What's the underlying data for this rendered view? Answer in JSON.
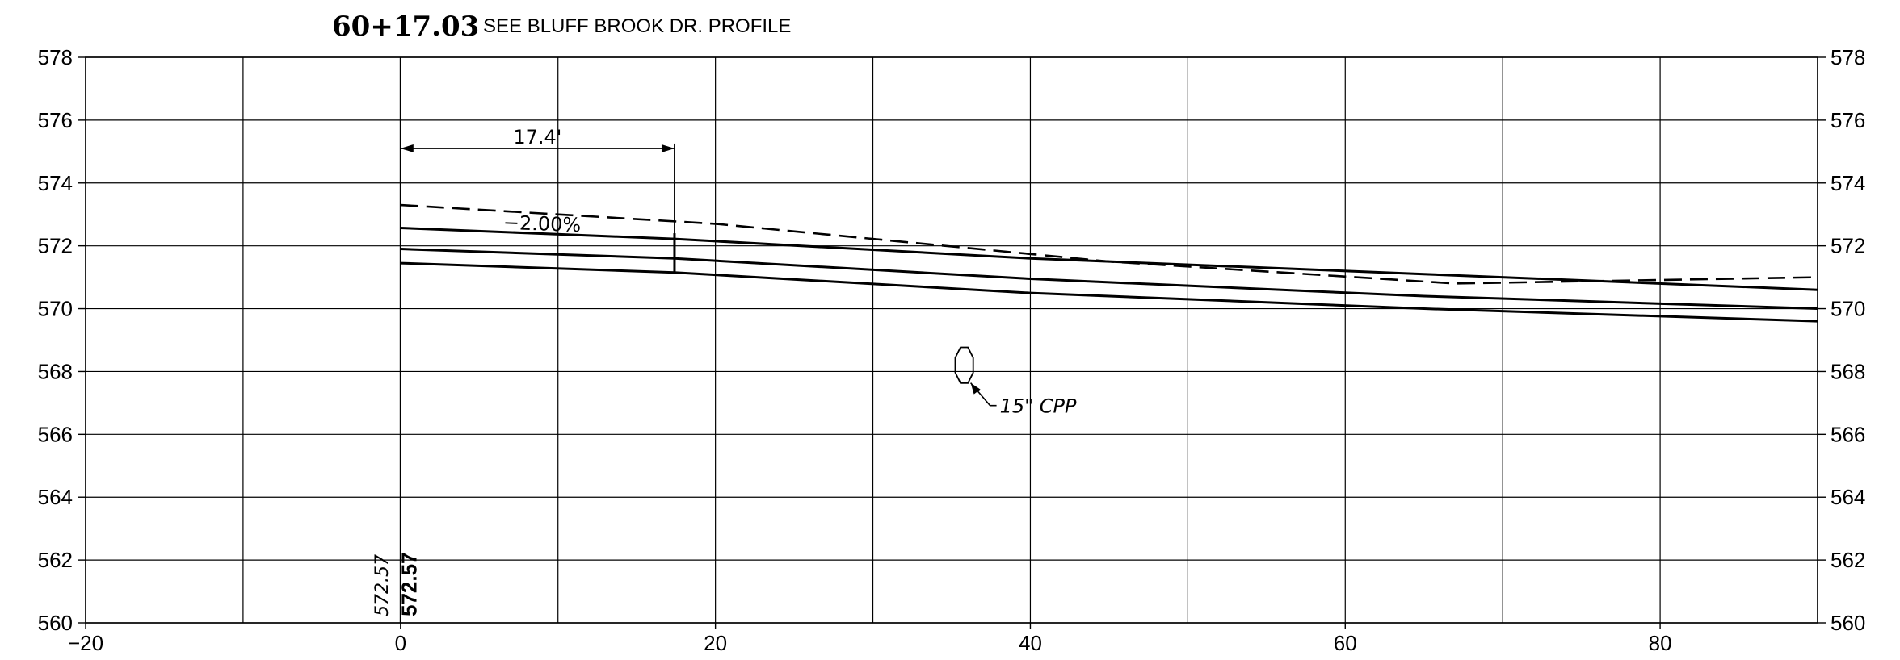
{
  "title": {
    "station": "60+17.03",
    "description": "SEE BLUFF BROOK DR. PROFILE"
  },
  "chart_data": {
    "type": "line",
    "xlim": [
      -20,
      90
    ],
    "ylim": [
      560,
      578
    ],
    "x_ticks": [
      -20,
      0,
      20,
      40,
      60,
      80
    ],
    "x_tick_labels": [
      "−20",
      "0",
      "20",
      "40",
      "60",
      "80"
    ],
    "x_grid": [
      -20,
      -10,
      0,
      10,
      20,
      30,
      40,
      50,
      60,
      70,
      80,
      90
    ],
    "y_ticks": [
      560,
      562,
      564,
      566,
      568,
      570,
      572,
      574,
      576,
      578
    ],
    "y_tick_labels": [
      "560",
      "562",
      "564",
      "566",
      "568",
      "570",
      "572",
      "574",
      "576",
      "578"
    ],
    "grid": true,
    "series": [
      {
        "style": "solid",
        "x": [
          0,
          17.4,
          40,
          65,
          90
        ],
        "y": [
          572.57,
          572.22,
          571.6,
          571.1,
          570.6
        ]
      },
      {
        "style": "solid",
        "x": [
          0,
          17.4,
          40,
          65,
          90
        ],
        "y": [
          571.9,
          571.6,
          570.95,
          570.4,
          570.0
        ]
      },
      {
        "style": "solid",
        "x": [
          0,
          17.4,
          40,
          65,
          90
        ],
        "y": [
          571.45,
          571.15,
          570.5,
          570.0,
          569.6
        ]
      },
      {
        "style": "dashed",
        "x": [
          0,
          20,
          45,
          67,
          90
        ],
        "y": [
          573.3,
          572.7,
          571.5,
          570.8,
          571.0
        ]
      }
    ],
    "dimension": {
      "text": "17.4'",
      "x_start": 0,
      "x_end": 17.4,
      "y": 575.1
    },
    "slope_label": {
      "text": "−2.00%",
      "x": 9,
      "y": 572.8
    },
    "pipe": {
      "label": "15\" CPP",
      "center_x": 35.8,
      "center_y": 568.2
    },
    "elevation_labels": [
      {
        "text": "572.57",
        "style": "handwritten",
        "x": -0.8
      },
      {
        "text": "572.57",
        "style": "bold",
        "x": 1.0
      }
    ]
  }
}
